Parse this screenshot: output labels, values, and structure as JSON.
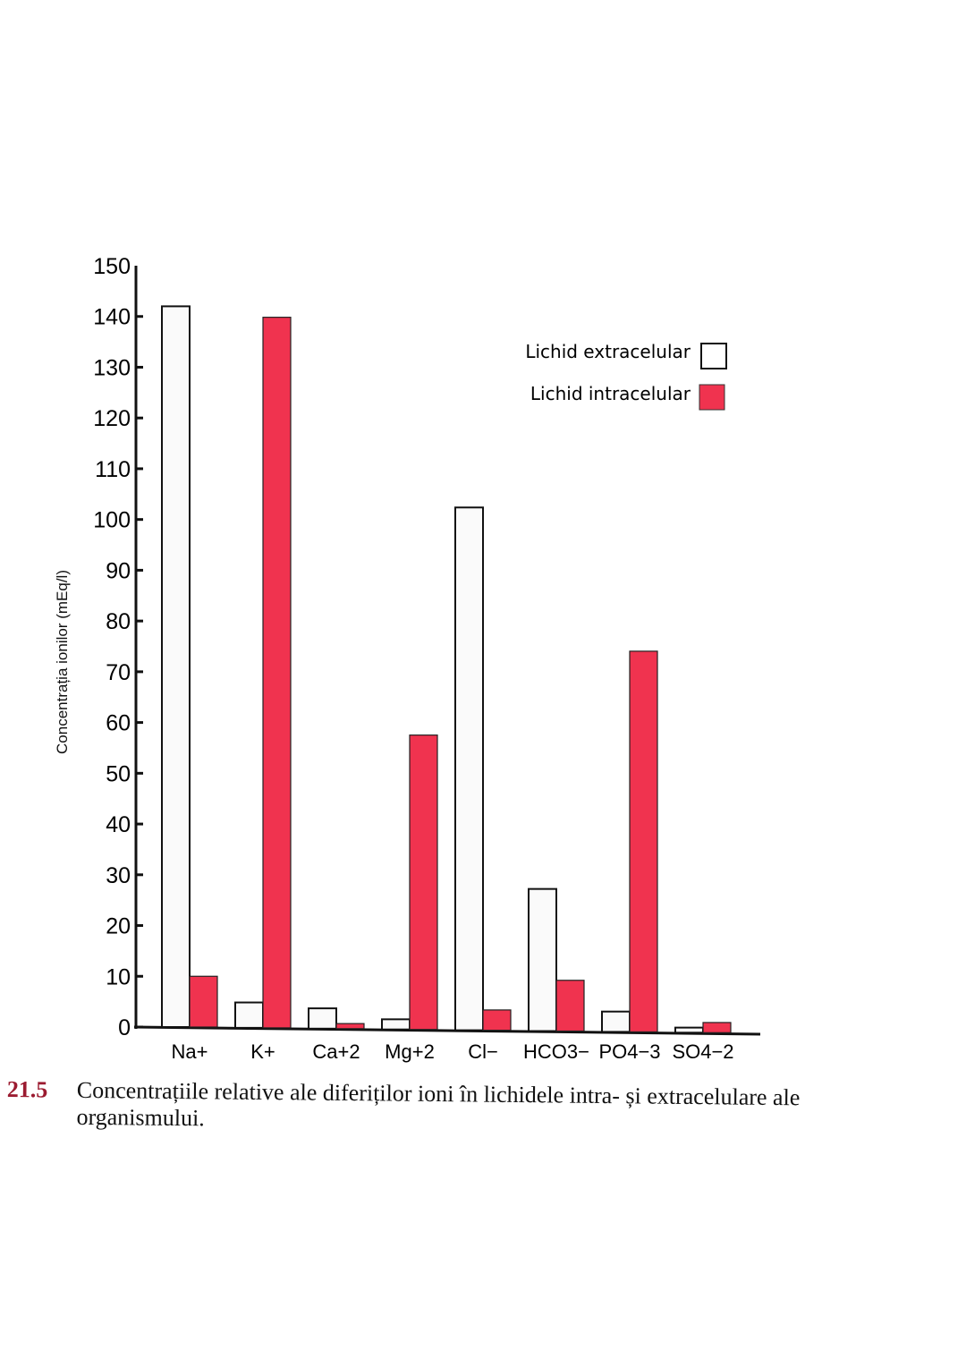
{
  "chart_data": {
    "type": "bar",
    "title": "",
    "xlabel": "",
    "ylabel": "Concentrația ionilor (mEq/l)",
    "ylim": [
      0,
      150
    ],
    "yticks": [
      0,
      10,
      20,
      30,
      40,
      50,
      60,
      70,
      80,
      90,
      100,
      110,
      120,
      130,
      140,
      150
    ],
    "grid": false,
    "legend_position": "upper right",
    "categories": [
      "Na+",
      "K+",
      "Ca+2",
      "Mg+2",
      "Cl−",
      "HCO3−",
      "PO4−3",
      "SO4−2"
    ],
    "series": [
      {
        "name": "Lichid extracelular",
        "color": "#fafafa",
        "values": [
          142,
          5,
          4,
          2,
          103,
          28,
          4,
          1
        ]
      },
      {
        "name": "Lichid intracelular",
        "color": "#f0334f",
        "values": [
          10,
          140,
          1,
          58,
          4,
          10,
          75,
          2
        ]
      }
    ]
  },
  "legend": {
    "extracellular": "Lichid extracelular",
    "intracellular": "Lichid intracelular"
  },
  "caption": {
    "number": "21.5",
    "line1": "Concentrațiile relative ale diferiților ioni în lichidele intra- și extracelulare ale",
    "line2": "organismului."
  }
}
